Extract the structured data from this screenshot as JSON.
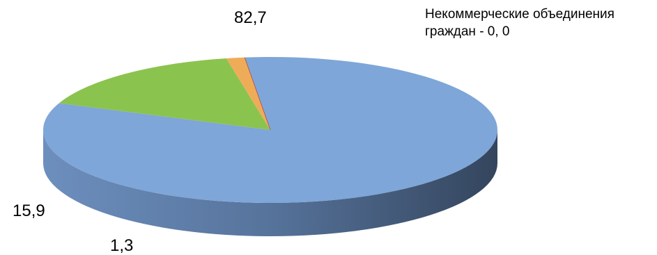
{
  "chart_data": {
    "type": "pie",
    "style": "3d",
    "categories": [
      "",
      "",
      "",
      "Некоммерческие объединения граждан"
    ],
    "values": [
      82.7,
      15.9,
      1.3,
      0.0
    ],
    "colors": [
      "#7ea6d8",
      "#8bc34f",
      "#efac58",
      "#c00000"
    ],
    "legend": "none",
    "data_labels": [
      {
        "text": "82,7"
      },
      {
        "text": "15,9"
      },
      {
        "text": "1,3"
      },
      {
        "text": "Некоммерческие объединения граждан - 0, 0"
      }
    ]
  }
}
